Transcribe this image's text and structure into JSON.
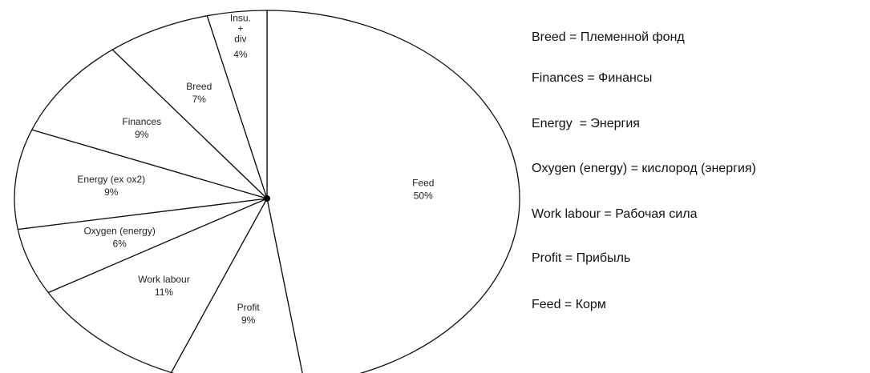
{
  "chart_data": {
    "type": "pie",
    "categories": [
      "Feed",
      "Profit",
      "Work labour",
      "Oxygen (energy)",
      "Energy (ex ox2)",
      "Finances",
      "Breed",
      "Insu.\n+\ndiv"
    ],
    "values": [
      50,
      9,
      11,
      6,
      9,
      9,
      7,
      4
    ],
    "value_labels": [
      "50%",
      "9%",
      "11%",
      "6%",
      "9%",
      "9%",
      "7%",
      "4%"
    ],
    "color": "#ffffff"
  },
  "translations": [
    "Breed = Племенной фонд",
    "Finances = Финансы",
    "Energy  = Энергия",
    "Oxygen (energy) = кислород (энергия)",
    "Work labour = Рабочая сила",
    "Profit = Прибыль",
    "Feed = Корм"
  ]
}
